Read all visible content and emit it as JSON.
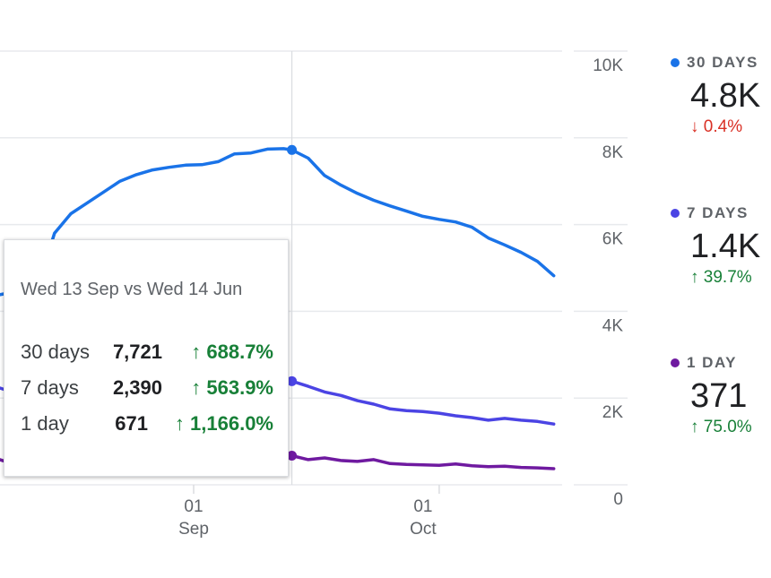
{
  "chart_data": {
    "type": "line",
    "x": [
      "Aug 7",
      "Aug 9",
      "Aug 11",
      "Aug 13",
      "Aug 15",
      "Aug 17",
      "Aug 19",
      "Aug 21",
      "Aug 23",
      "Aug 25",
      "Aug 27",
      "Aug 29",
      "Aug 31",
      "Sep 2",
      "Sep 4",
      "Sep 6",
      "Sep 8",
      "Sep 10",
      "Sep 12",
      "Sep 13",
      "Sep 15",
      "Sep 17",
      "Sep 19",
      "Sep 21",
      "Sep 23",
      "Sep 25",
      "Sep 27",
      "Sep 29",
      "Oct 1",
      "Oct 3",
      "Oct 5",
      "Oct 7",
      "Oct 9",
      "Oct 11",
      "Oct 13",
      "Oct 15"
    ],
    "series": [
      {
        "name": "30 days",
        "color": "#1a73e8",
        "values": [
          4330,
          4410,
          4450,
          4600,
          5800,
          6250,
          6500,
          6750,
          7000,
          7150,
          7260,
          7320,
          7370,
          7380,
          7450,
          7630,
          7650,
          7740,
          7750,
          7721,
          7530,
          7130,
          6910,
          6720,
          6560,
          6430,
          6310,
          6190,
          6120,
          6060,
          5940,
          5690,
          5530,
          5360,
          5150,
          4820
        ]
      },
      {
        "name": "7 days",
        "color": "#4b44e4",
        "values": [
          2310,
          2190,
          1960,
          1860,
          2890,
          3180,
          3340,
          3380,
          2970,
          2720,
          2640,
          2470,
          2370,
          2230,
          2580,
          2780,
          2850,
          2780,
          2520,
          2390,
          2270,
          2140,
          2060,
          1940,
          1860,
          1750,
          1710,
          1690,
          1650,
          1590,
          1550,
          1490,
          1530,
          1490,
          1460,
          1400
        ]
      },
      {
        "name": "1 day",
        "color": "#6f1aa0",
        "values": [
          660,
          540,
          450,
          580,
          1280,
          1030,
          1010,
          950,
          890,
          820,
          780,
          720,
          620,
          640,
          970,
          910,
          850,
          740,
          700,
          671,
          580,
          620,
          560,
          540,
          580,
          490,
          470,
          460,
          450,
          480,
          440,
          420,
          430,
          400,
          390,
          371
        ]
      }
    ],
    "ylim": [
      0,
      10000
    ],
    "y_ticks": [
      "0",
      "2K",
      "4K",
      "6K",
      "8K",
      "10K"
    ],
    "x_ticks": [
      {
        "date": "Sep 1",
        "day": "01",
        "month": "Sep"
      },
      {
        "date": "Oct 1",
        "day": "01",
        "month": "Oct"
      }
    ],
    "hover_date": "Sep 13",
    "grid": true,
    "legend_placement": "right"
  },
  "legend": [
    {
      "label": "30 DAYS",
      "value": "4.8K",
      "change": "0.4%",
      "direction": "down",
      "color": "#1a73e8"
    },
    {
      "label": "7 DAYS",
      "value": "1.4K",
      "change": "39.7%",
      "direction": "up",
      "color": "#4b44e4"
    },
    {
      "label": "1 DAY",
      "value": "371",
      "change": "75.0%",
      "direction": "up",
      "color": "#6f1aa0"
    }
  ],
  "tooltip": {
    "title": "Wed 13 Sep vs Wed 14 Jun",
    "rows": [
      {
        "label": "30 days",
        "value": "7,721",
        "change": "688.7%"
      },
      {
        "label": "7 days",
        "value": "2,390",
        "change": "563.9%"
      },
      {
        "label": "1 day",
        "value": "671",
        "change": "1,166.0%"
      }
    ]
  },
  "icons": {
    "up": "arrow-up-icon",
    "down": "arrow-down-icon"
  },
  "colors": {
    "up": "#188038",
    "down": "#d93025",
    "grid": "#e8eaed",
    "text": "#5f6368"
  }
}
